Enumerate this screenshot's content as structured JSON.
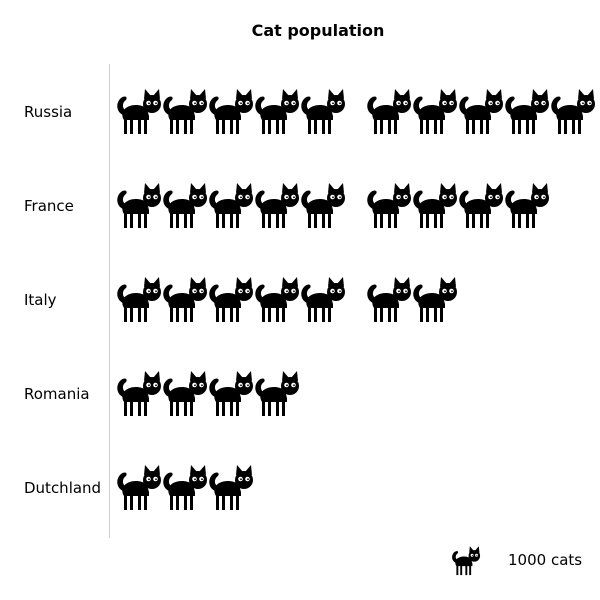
{
  "chart_data": {
    "type": "pictograph",
    "title": "Cat population",
    "categories": [
      "Russia",
      "France",
      "Italy",
      "Romania",
      "Dutchland"
    ],
    "values": [
      10000,
      9000,
      7000,
      4000,
      3000
    ],
    "unit_value": 1000,
    "legend": {
      "label": "1000 cats",
      "icon": "cat-icon"
    },
    "colors": {
      "icon": "#000000",
      "eyes": "#ffffff",
      "axis": "#cccccc"
    }
  }
}
